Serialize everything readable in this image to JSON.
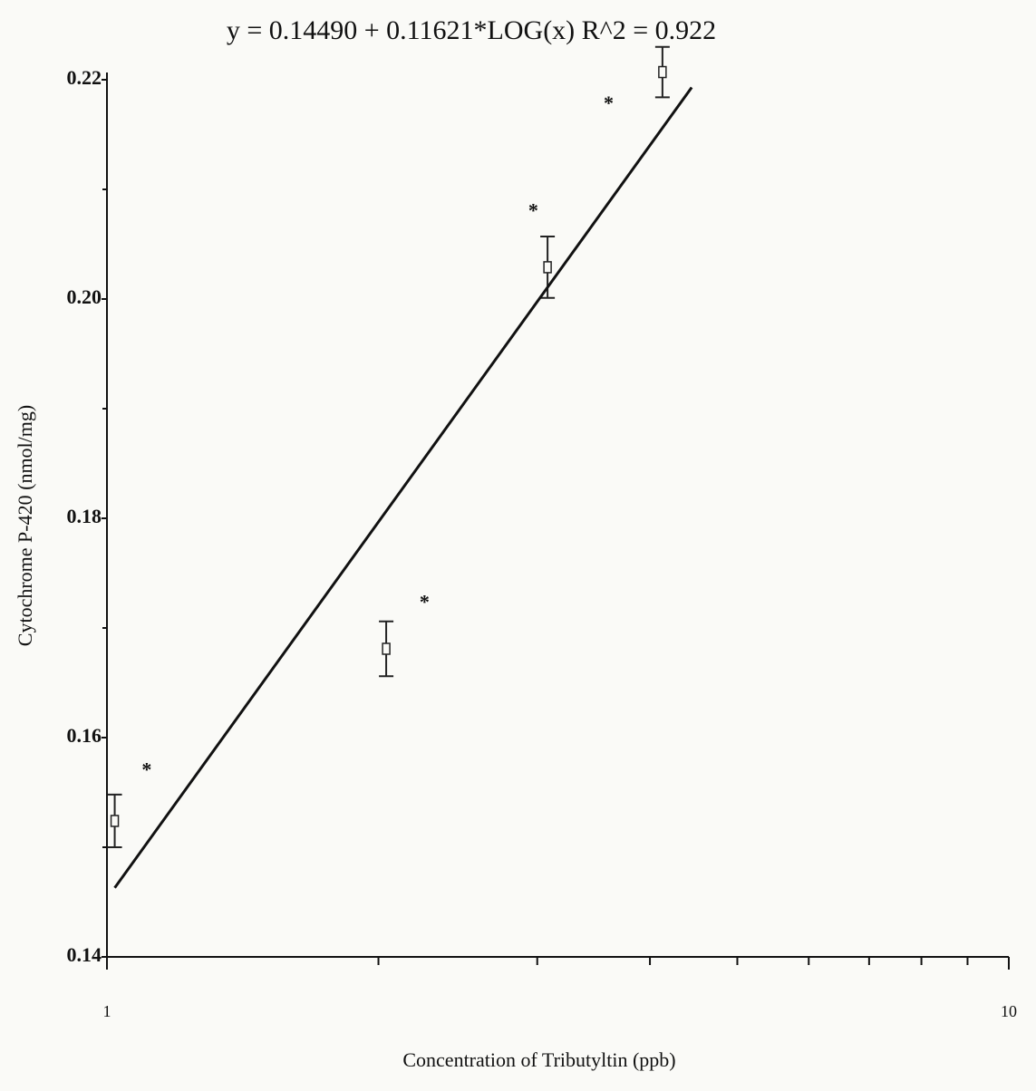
{
  "chart_data": {
    "type": "scatter",
    "title": "y = 0.14490 + 0.11621*LOG(x)   R^2 = 0.922",
    "x_label": "Concentration of Tributyltin (ppb)",
    "y_label": "Cytochrome P-420 (nmol/mg)",
    "x_scale": "log",
    "xlim": [
      1,
      10
    ],
    "xticks": [
      1,
      10
    ],
    "xminorticks": [
      2,
      3,
      4,
      5,
      6,
      7,
      8,
      9
    ],
    "ylim": [
      0.14,
      0.22
    ],
    "yticks": [
      0.14,
      0.16,
      0.18,
      {
        "value": 0.2,
        "label": "0.20"
      },
      0.22
    ],
    "yminorticks": [
      0.15,
      0.17,
      0.19,
      0.21
    ],
    "series": [
      {
        "marker": "square",
        "color": "#222",
        "x": [
          1.02,
          2.04,
          3.08,
          4.13
        ],
        "values": [
          0.1524,
          0.1681,
          0.2029,
          0.2207
        ],
        "errors": [
          0.0024,
          0.0025,
          0.0028,
          0.0023
        ]
      },
      {
        "marker": "asterisk",
        "color": "#222",
        "x": [
          1.107,
          2.25,
          2.97,
          3.6
        ],
        "values": [
          0.1573,
          0.1726,
          0.2083,
          0.2181
        ]
      },
      {
        "marker": "line",
        "color": "#111",
        "x": [
          1.02,
          4.45
        ],
        "values": [
          0.1463,
          0.2193
        ]
      }
    ]
  }
}
